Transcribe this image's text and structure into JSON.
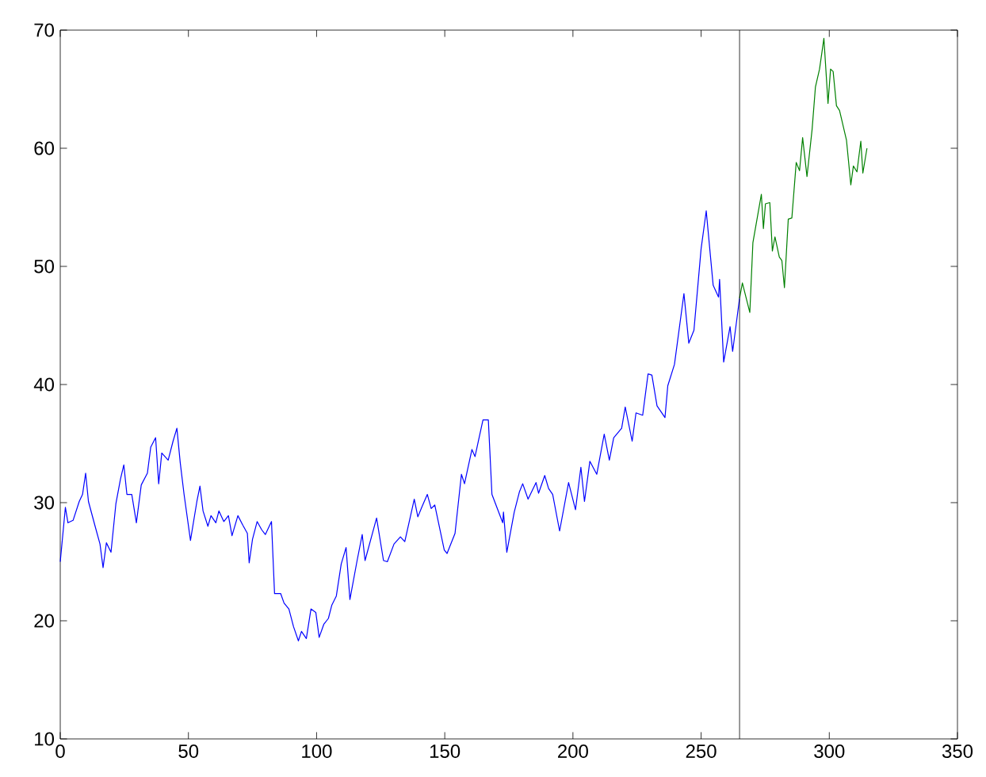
{
  "chart_data": {
    "type": "line",
    "xlim": [
      0,
      350
    ],
    "ylim": [
      10,
      70
    ],
    "xticks": [
      0,
      50,
      100,
      150,
      200,
      250,
      300,
      350
    ],
    "yticks": [
      10,
      20,
      30,
      40,
      50,
      60,
      70
    ],
    "marker": "none",
    "line_style": "solid",
    "ref_lines": [
      {
        "axis": "x",
        "value": 265,
        "color": "#000000"
      }
    ],
    "series": [
      {
        "color": "#0000ff",
        "x": [
          0,
          2,
          3,
          5,
          7.4,
          8.7,
          9.9,
          11,
          13.6,
          15.5,
          16.7,
          18,
          19.8,
          21.7,
          23.5,
          24.8,
          26,
          27.9,
          29.7,
          31.6,
          34,
          35.3,
          37.2,
          38.4,
          39.6,
          42.1,
          44,
          45.5,
          46.8,
          48.3,
          50.8,
          53.3,
          54.5,
          55.7,
          57.6,
          58.8,
          60.7,
          61.9,
          63.8,
          65.6,
          67,
          69.3,
          71.2,
          73,
          73.7,
          75,
          76.8,
          78.6,
          80,
          82.4,
          83.6,
          86,
          87.3,
          89.2,
          91,
          92.9,
          94.1,
          96,
          97.8,
          99.7,
          101,
          102.8,
          104.6,
          105.9,
          107.7,
          109.6,
          111.5,
          113,
          115.8,
          117.8,
          118.9,
          123.4,
          126.1,
          127.6,
          130.2,
          132.7,
          134.4,
          138.1,
          139.5,
          141,
          143.2,
          144.7,
          146.1,
          149.8,
          150.9,
          154,
          156.5,
          157.7,
          160.6,
          161.8,
          164.9,
          167,
          168.4,
          172.6,
          172.9,
          174.2,
          177.1,
          179.1,
          180.4,
          182.5,
          185.6,
          186.6,
          189,
          190.5,
          192.1,
          194.8,
          198.3,
          201,
          203.1,
          204.5,
          206.6,
          209.3,
          212.2,
          214.2,
          215.9,
          219,
          220.4,
          223.1,
          224.6,
          227.2,
          229.3,
          230.8,
          232.8,
          235.9,
          237,
          239.6,
          243.3,
          245.2,
          247.2,
          250,
          252,
          254.7,
          256.8,
          257.2,
          258.8,
          261.3,
          262.3,
          265
        ],
        "values": [
          25,
          29.6,
          28.3,
          28.5,
          30.1,
          30.7,
          32.5,
          30.1,
          28,
          26.5,
          24.5,
          26.6,
          25.8,
          29.9,
          32,
          33.2,
          30.7,
          30.7,
          28.3,
          31.5,
          32.5,
          34.7,
          35.5,
          31.6,
          34.2,
          33.6,
          35.2,
          36.3,
          33.4,
          30.7,
          26.8,
          30.1,
          31.4,
          29.3,
          28,
          28.9,
          28.3,
          29.3,
          28.4,
          28.9,
          27.2,
          28.9,
          28.1,
          27.4,
          24.9,
          26.9,
          28.4,
          27.7,
          27.3,
          28.4,
          22.3,
          22.3,
          21.5,
          21,
          19.5,
          18.3,
          19.1,
          18.5,
          21,
          20.7,
          18.6,
          19.7,
          20.2,
          21.3,
          22.1,
          24.8,
          26.2,
          21.8,
          25.1,
          27.3,
          25.1,
          28.7,
          25.1,
          25,
          26.5,
          27.1,
          26.7,
          30.3,
          28.8,
          29.6,
          30.7,
          29.5,
          29.8,
          26,
          25.7,
          27.4,
          32.4,
          31.6,
          34.5,
          33.9,
          37,
          37,
          30.7,
          28.3,
          29.2,
          25.8,
          29.2,
          30.9,
          31.6,
          30.3,
          31.7,
          30.8,
          32.3,
          31.2,
          30.7,
          27.6,
          31.7,
          29.4,
          33,
          30.1,
          33.5,
          32.4,
          35.8,
          33.6,
          35.5,
          36.3,
          38.1,
          35.2,
          37.6,
          37.4,
          40.9,
          40.8,
          38.2,
          37.2,
          39.9,
          41.7,
          47.7,
          43.5,
          44.6,
          51.5,
          54.7,
          48.4,
          47.4,
          48.9,
          41.9,
          44.9,
          42.8,
          47.3
        ]
      },
      {
        "color": "#008000",
        "x": [
          265,
          266.1,
          269,
          270.2,
          273.5,
          274.3,
          275.1,
          276.8,
          277.8,
          278.8,
          280.5,
          281.5,
          282.5,
          284,
          285.4,
          287.1,
          288.4,
          289.6,
          291.3,
          293.3,
          294.6,
          296.2,
          297.9,
          299.5,
          300.5,
          301.5,
          302.8,
          304,
          306.7,
          308.4,
          309.4,
          310.8,
          312.3,
          313.1,
          314.7
        ],
        "values": [
          47.3,
          48.6,
          46.1,
          52,
          56.1,
          53.2,
          55.3,
          55.4,
          51.3,
          52.5,
          50.8,
          50.5,
          48.2,
          54,
          54.1,
          58.8,
          58.1,
          60.9,
          57.6,
          61.6,
          65.2,
          66.7,
          69.3,
          63.8,
          66.7,
          66.5,
          63.6,
          63.2,
          60.7,
          56.9,
          58.5,
          58,
          60.6,
          57.9,
          60
        ]
      }
    ]
  }
}
